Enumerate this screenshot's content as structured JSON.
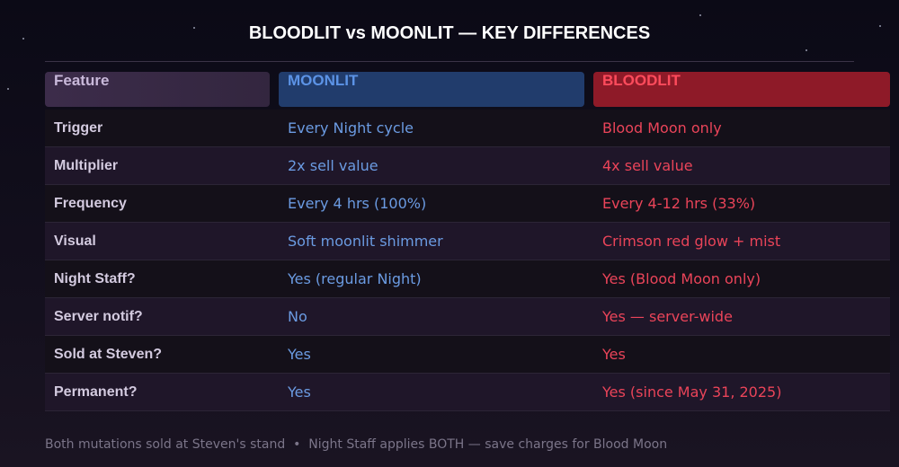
{
  "title": "BLOODLIT vs MOONLIT — KEY DIFFERENCES",
  "table": {
    "headers": [
      "Feature",
      "MOONLIT",
      "BLOODLIT"
    ],
    "rows": [
      [
        "Trigger",
        "Every Night cycle",
        "Blood Moon only"
      ],
      [
        "Multiplier",
        "2x sell value",
        "4x sell value"
      ],
      [
        "Frequency",
        "Every 4 hrs (100%)",
        "Every 4-12 hrs (33%)"
      ],
      [
        "Visual",
        "Soft moonlit shimmer",
        "Crimson red glow + mist"
      ],
      [
        "Night Staff?",
        "Yes (regular Night)",
        "Yes (Blood Moon only)"
      ],
      [
        "Server notif?",
        "No",
        "Yes — server-wide"
      ],
      [
        "Sold at Steven?",
        "Yes",
        "Yes"
      ],
      [
        "Permanent?",
        "Yes",
        "Yes (since May 31, 2025)"
      ]
    ]
  },
  "footer": "Both mutations sold at Steven's stand  •  Night Staff applies BOTH — save charges for Blood Moon"
}
